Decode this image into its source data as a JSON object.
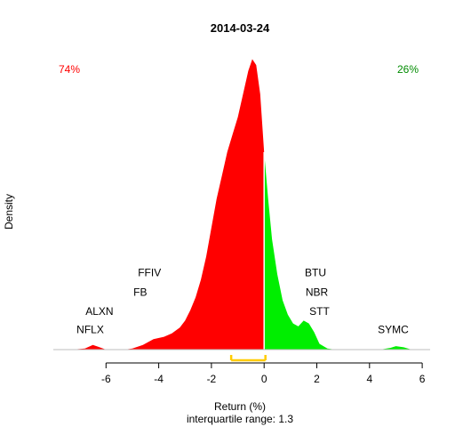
{
  "chart_data": {
    "type": "area",
    "title": "2014-03-24",
    "xlabel": "Return (%)",
    "ylabel": "Density",
    "subtitle": "interquartile range: 1.3",
    "xlim": [
      -8,
      6.3
    ],
    "ylim": [
      0,
      0.51
    ],
    "x_ticks": [
      -6,
      -4,
      -2,
      0,
      2,
      4,
      6
    ],
    "split_x": 0,
    "negative_share": "74%",
    "positive_share": "26%",
    "colors": {
      "negative": "#ff0000",
      "positive": "#00ee00",
      "iqr_bar": "#ffcc00",
      "baseline": "#bebebe",
      "negative_text": "#ff0000",
      "positive_text": "#008b00"
    },
    "iqr": [
      -1.25,
      0.05
    ],
    "density": {
      "x": [
        -7.3,
        -6.8,
        -6.5,
        -6.3,
        -6.0,
        -5.3,
        -5.0,
        -4.6,
        -4.2,
        -3.8,
        -3.5,
        -3.2,
        -3.0,
        -2.8,
        -2.6,
        -2.4,
        -2.2,
        -2.0,
        -1.8,
        -1.6,
        -1.4,
        -1.2,
        -1.0,
        -0.8,
        -0.6,
        -0.45,
        -0.3,
        -0.15,
        0.0,
        0.15,
        0.3,
        0.5,
        0.7,
        0.9,
        1.1,
        1.3,
        1.5,
        1.7,
        1.9,
        2.1,
        2.4,
        2.7,
        4.4,
        4.8,
        5.0,
        5.3,
        5.6
      ],
      "y": [
        0.0,
        0.002,
        0.008,
        0.005,
        0.0,
        0.0,
        0.002,
        0.008,
        0.018,
        0.022,
        0.028,
        0.038,
        0.05,
        0.068,
        0.09,
        0.12,
        0.16,
        0.21,
        0.26,
        0.3,
        0.34,
        0.37,
        0.4,
        0.44,
        0.48,
        0.5,
        0.49,
        0.44,
        0.34,
        0.26,
        0.19,
        0.13,
        0.085,
        0.06,
        0.045,
        0.04,
        0.05,
        0.045,
        0.03,
        0.01,
        0.002,
        0.0,
        0.0,
        0.003,
        0.006,
        0.004,
        0.0
      ]
    },
    "annotations": [
      {
        "label": "NFLX",
        "x": -6.6,
        "y": 0.028
      },
      {
        "label": "ALXN",
        "x": -6.25,
        "y": 0.06
      },
      {
        "label": "FB",
        "x": -4.7,
        "y": 0.093
      },
      {
        "label": "FFIV",
        "x": -4.35,
        "y": 0.126
      },
      {
        "label": "BTU",
        "x": 1.95,
        "y": 0.126
      },
      {
        "label": "NBR",
        "x": 2.0,
        "y": 0.093
      },
      {
        "label": "STT",
        "x": 2.1,
        "y": 0.06
      },
      {
        "label": "SYMC",
        "x": 4.9,
        "y": 0.028
      }
    ]
  }
}
